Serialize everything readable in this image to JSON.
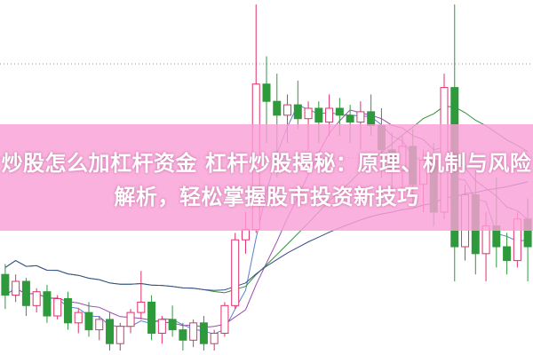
{
  "title": "炒股怎么加杠杆资金 杠杆炒股揭秘：原理、机制与风险解析，轻松掌握股市投资新技巧",
  "colors": {
    "up": "#e0306a",
    "down": "#2f9a3c",
    "banner": "#f9a8da",
    "text": "#ffffff"
  },
  "candles": [
    [
      22,
      25,
      12,
      16
    ],
    [
      16,
      22,
      14,
      20
    ],
    [
      20,
      21,
      10,
      13
    ],
    [
      13,
      18,
      11,
      17
    ],
    [
      17,
      19,
      8,
      10
    ],
    [
      10,
      16,
      9,
      15
    ],
    [
      15,
      17,
      6,
      8
    ],
    [
      8,
      12,
      5,
      11
    ],
    [
      11,
      14,
      4,
      6
    ],
    [
      6,
      10,
      3,
      9
    ],
    [
      9,
      11,
      0,
      2
    ],
    [
      2,
      8,
      0,
      7
    ],
    [
      7,
      12,
      5,
      11
    ],
    [
      11,
      23,
      9,
      14
    ],
    [
      14,
      16,
      3,
      5
    ],
    [
      5,
      10,
      2,
      9
    ],
    [
      9,
      13,
      4,
      6
    ],
    [
      6,
      8,
      0,
      3
    ],
    [
      3,
      9,
      1,
      8
    ],
    [
      8,
      10,
      0,
      2
    ],
    [
      2,
      6,
      0,
      5
    ],
    [
      5,
      14,
      4,
      13
    ],
    [
      13,
      34,
      12,
      32
    ],
    [
      32,
      40,
      28,
      35
    ],
    [
      35,
      100,
      34,
      77
    ],
    [
      77,
      85,
      60,
      72
    ],
    [
      72,
      80,
      50,
      68
    ],
    [
      68,
      74,
      60,
      71
    ],
    [
      71,
      78,
      64,
      67
    ],
    [
      67,
      72,
      58,
      70
    ],
    [
      70,
      72,
      60,
      66
    ],
    [
      66,
      74,
      62,
      70
    ],
    [
      70,
      73,
      62,
      68
    ],
    [
      68,
      71,
      60,
      66
    ],
    [
      66,
      72,
      58,
      69
    ],
    [
      69,
      74,
      62,
      65
    ],
    [
      65,
      70,
      50,
      58
    ],
    [
      58,
      63,
      45,
      52
    ],
    [
      52,
      62,
      44,
      59
    ],
    [
      59,
      64,
      42,
      48
    ],
    [
      48,
      58,
      40,
      55
    ],
    [
      55,
      60,
      36,
      40
    ],
    [
      40,
      80,
      38,
      76
    ],
    [
      76,
      100,
      20,
      30
    ],
    [
      30,
      48,
      26,
      45
    ],
    [
      45,
      52,
      22,
      28
    ],
    [
      28,
      40,
      20,
      36
    ],
    [
      36,
      50,
      24,
      30
    ],
    [
      30,
      34,
      22,
      26
    ],
    [
      26,
      40,
      24,
      38
    ],
    [
      38,
      44,
      20,
      30
    ]
  ]
}
